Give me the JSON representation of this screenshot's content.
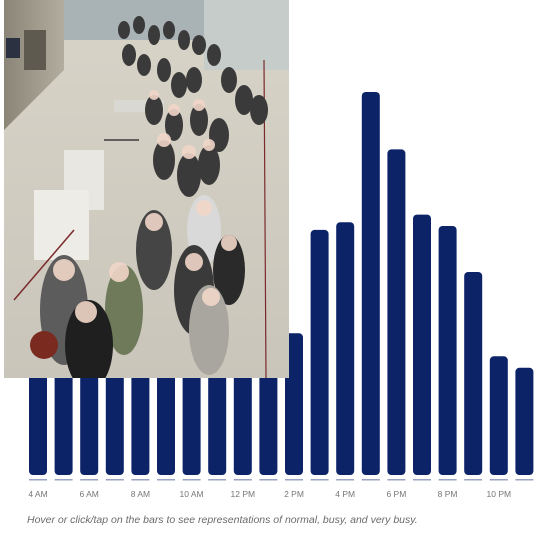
{
  "chart_data": {
    "type": "bar",
    "categories": [
      "4 AM",
      "5 AM",
      "6 AM",
      "7 AM",
      "8 AM",
      "9 AM",
      "10 AM",
      "11 AM",
      "12 PM",
      "1 PM",
      "2 PM",
      "3 PM",
      "4 PM",
      "5 PM",
      "6 PM",
      "7 PM",
      "8 PM",
      "9 PM",
      "10 PM",
      "11 PM"
    ],
    "tick_labels": [
      "4 AM",
      "6 AM",
      "8 AM",
      "10 AM",
      "12 PM",
      "2 PM",
      "4 PM",
      "6 PM",
      "8 PM",
      "10 PM"
    ],
    "values": [
      30,
      28,
      28,
      27,
      27,
      27,
      27,
      28,
      29,
      31,
      37,
      64,
      66,
      100,
      85,
      68,
      65,
      53,
      31,
      28
    ],
    "ylim": [
      0,
      100
    ],
    "bar_color": "#0c2467",
    "grid": false,
    "legend": "none"
  },
  "caption": "Hover or click/tap on the bars to see representations of normal, busy, and very busy.",
  "image": {
    "alt": "Crowded airport security checkpoint queue",
    "icon": "crowd-photo"
  }
}
